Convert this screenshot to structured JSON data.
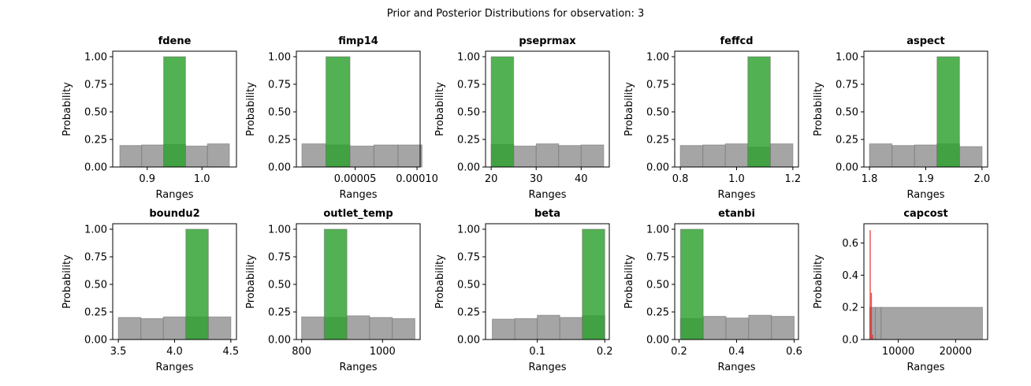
{
  "figure": {
    "suptitle": "Prior and Posterior Distributions for observation: 3"
  },
  "colors": {
    "prior": "#999999",
    "posterior": "#2ca02c",
    "posterior_red": "#e8282b",
    "edge": "#777777"
  },
  "chart_data": [
    {
      "type": "bar",
      "title": "fdene",
      "xlabel": "Ranges",
      "ylabel": "Probability",
      "xlim": [
        0.837,
        1.063
      ],
      "ylim": [
        0,
        1.05
      ],
      "xticks": [
        {
          "v": 0.9,
          "label": "0.9"
        },
        {
          "v": 1.0,
          "label": "1.0"
        }
      ],
      "yticks": [
        {
          "v": 0,
          "label": "0.00"
        },
        {
          "v": 0.25,
          "label": "0.25"
        },
        {
          "v": 0.5,
          "label": "0.50"
        },
        {
          "v": 0.75,
          "label": "0.75"
        },
        {
          "v": 1.0,
          "label": "1.00"
        }
      ],
      "series": [
        {
          "name": "prior",
          "bins": [
            [
              0.85,
              0.89,
              0.195
            ],
            [
              0.89,
              0.93,
              0.2
            ],
            [
              0.93,
              0.97,
              0.205
            ],
            [
              0.97,
              1.01,
              0.19
            ],
            [
              1.01,
              1.05,
              0.21
            ]
          ]
        },
        {
          "name": "posterior",
          "bins": [
            [
              0.93,
              0.97,
              1.0
            ]
          ]
        }
      ]
    },
    {
      "type": "bar",
      "title": "fimp14",
      "xlabel": "Ranges",
      "ylabel": "Probability",
      "xlim": [
        2.5e-06,
        0.0001025
      ],
      "ylim": [
        0,
        1.05
      ],
      "xticks": [
        {
          "v": 5e-05,
          "label": "0.00005"
        },
        {
          "v": 0.0001,
          "label": "0.00010"
        }
      ],
      "yticks": [
        {
          "v": 0,
          "label": "0.00"
        },
        {
          "v": 0.25,
          "label": "0.25"
        },
        {
          "v": 0.5,
          "label": "0.50"
        },
        {
          "v": 0.75,
          "label": "0.75"
        },
        {
          "v": 1.0,
          "label": "1.00"
        }
      ],
      "series": [
        {
          "name": "prior",
          "bins": [
            [
              7e-06,
              2.64e-05,
              0.21
            ],
            [
              2.64e-05,
              4.58e-05,
              0.2
            ],
            [
              4.58e-05,
              6.52e-05,
              0.19
            ],
            [
              6.52e-05,
              8.46e-05,
              0.2
            ],
            [
              8.46e-05,
              0.000104,
              0.2
            ]
          ]
        },
        {
          "name": "posterior",
          "bins": [
            [
              2.64e-05,
              4.58e-05,
              1.0
            ]
          ]
        }
      ]
    },
    {
      "type": "bar",
      "title": "pseprmax",
      "xlabel": "Ranges",
      "ylabel": "Probability",
      "xlim": [
        18.75,
        46.25
      ],
      "ylim": [
        0,
        1.05
      ],
      "xticks": [
        {
          "v": 20,
          "label": "20"
        },
        {
          "v": 30,
          "label": "30"
        },
        {
          "v": 40,
          "label": "40"
        }
      ],
      "yticks": [
        {
          "v": 0,
          "label": "0.00"
        },
        {
          "v": 0.25,
          "label": "0.25"
        },
        {
          "v": 0.5,
          "label": "0.50"
        },
        {
          "v": 0.75,
          "label": "0.75"
        },
        {
          "v": 1.0,
          "label": "1.00"
        }
      ],
      "series": [
        {
          "name": "prior",
          "bins": [
            [
              20,
              25,
              0.205
            ],
            [
              25,
              30,
              0.19
            ],
            [
              30,
              35,
              0.21
            ],
            [
              35,
              40,
              0.195
            ],
            [
              40,
              45,
              0.2
            ]
          ]
        },
        {
          "name": "posterior",
          "bins": [
            [
              20,
              25,
              1.0
            ]
          ]
        }
      ]
    },
    {
      "type": "bar",
      "title": "feffcd",
      "xlabel": "Ranges",
      "ylabel": "Probability",
      "xlim": [
        0.78,
        1.22
      ],
      "ylim": [
        0,
        1.05
      ],
      "xticks": [
        {
          "v": 0.8,
          "label": "0.8"
        },
        {
          "v": 1.0,
          "label": "1.0"
        },
        {
          "v": 1.2,
          "label": "1.2"
        }
      ],
      "yticks": [
        {
          "v": 0,
          "label": "0.00"
        },
        {
          "v": 0.25,
          "label": "0.25"
        },
        {
          "v": 0.5,
          "label": "0.50"
        },
        {
          "v": 0.75,
          "label": "0.75"
        },
        {
          "v": 1.0,
          "label": "1.00"
        }
      ],
      "series": [
        {
          "name": "prior",
          "bins": [
            [
              0.8,
              0.88,
              0.195
            ],
            [
              0.88,
              0.96,
              0.2
            ],
            [
              0.96,
              1.04,
              0.21
            ],
            [
              1.04,
              1.12,
              0.18
            ],
            [
              1.12,
              1.2,
              0.21
            ]
          ]
        },
        {
          "name": "posterior",
          "bins": [
            [
              1.04,
              1.12,
              1.0
            ]
          ]
        }
      ]
    },
    {
      "type": "bar",
      "title": "aspect",
      "xlabel": "Ranges",
      "ylabel": "Probability",
      "xlim": [
        1.79,
        2.01
      ],
      "ylim": [
        0,
        1.05
      ],
      "xticks": [
        {
          "v": 1.8,
          "label": "1.8"
        },
        {
          "v": 1.9,
          "label": "1.9"
        },
        {
          "v": 2.0,
          "label": "2.0"
        }
      ],
      "yticks": [
        {
          "v": 0,
          "label": "0.00"
        },
        {
          "v": 0.25,
          "label": "0.25"
        },
        {
          "v": 0.5,
          "label": "0.50"
        },
        {
          "v": 0.75,
          "label": "0.75"
        },
        {
          "v": 1.0,
          "label": "1.00"
        }
      ],
      "series": [
        {
          "name": "prior",
          "bins": [
            [
              1.8,
              1.84,
              0.21
            ],
            [
              1.84,
              1.88,
              0.195
            ],
            [
              1.88,
              1.92,
              0.2
            ],
            [
              1.92,
              1.96,
              0.21
            ],
            [
              1.96,
              2.0,
              0.185
            ]
          ]
        },
        {
          "name": "posterior",
          "bins": [
            [
              1.92,
              1.96,
              1.0
            ]
          ]
        }
      ]
    },
    {
      "type": "bar",
      "title": "boundu2",
      "xlabel": "Ranges",
      "ylabel": "Probability",
      "xlim": [
        3.45,
        4.55
      ],
      "ylim": [
        0,
        1.05
      ],
      "xticks": [
        {
          "v": 3.5,
          "label": "3.5"
        },
        {
          "v": 4.0,
          "label": "4.0"
        },
        {
          "v": 4.5,
          "label": "4.5"
        }
      ],
      "yticks": [
        {
          "v": 0,
          "label": "0.00"
        },
        {
          "v": 0.25,
          "label": "0.25"
        },
        {
          "v": 0.5,
          "label": "0.50"
        },
        {
          "v": 0.75,
          "label": "0.75"
        },
        {
          "v": 1.0,
          "label": "1.00"
        }
      ],
      "series": [
        {
          "name": "prior",
          "bins": [
            [
              3.5,
              3.7,
              0.2
            ],
            [
              3.7,
              3.9,
              0.19
            ],
            [
              3.9,
              4.1,
              0.205
            ],
            [
              4.1,
              4.3,
              0.205
            ],
            [
              4.3,
              4.5,
              0.205
            ]
          ]
        },
        {
          "name": "posterior",
          "bins": [
            [
              4.1,
              4.3,
              1.0
            ]
          ]
        }
      ]
    },
    {
      "type": "bar",
      "title": "outlet_temp",
      "xlabel": "Ranges",
      "ylabel": "Probability",
      "xlim": [
        787,
        1093
      ],
      "ylim": [
        0,
        1.05
      ],
      "xticks": [
        {
          "v": 800,
          "label": "800"
        },
        {
          "v": 1000,
          "label": "1000"
        }
      ],
      "yticks": [
        {
          "v": 0,
          "label": "0.00"
        },
        {
          "v": 0.25,
          "label": "0.25"
        },
        {
          "v": 0.5,
          "label": "0.50"
        },
        {
          "v": 0.75,
          "label": "0.75"
        },
        {
          "v": 1.0,
          "label": "1.00"
        }
      ],
      "series": [
        {
          "name": "prior",
          "bins": [
            [
              800,
              856,
              0.205
            ],
            [
              856,
              912,
              0.2
            ],
            [
              912,
              968,
              0.215
            ],
            [
              968,
              1024,
              0.2
            ],
            [
              1024,
              1080,
              0.19
            ]
          ]
        },
        {
          "name": "posterior",
          "bins": [
            [
              856,
              912,
              1.0
            ]
          ]
        }
      ]
    },
    {
      "type": "bar",
      "title": "beta",
      "xlabel": "Ranges",
      "ylabel": "Probability",
      "xlim": [
        0.0233,
        0.2067
      ],
      "ylim": [
        0,
        1.05
      ],
      "xticks": [
        {
          "v": 0.1,
          "label": "0.1"
        },
        {
          "v": 0.2,
          "label": "0.2"
        }
      ],
      "yticks": [
        {
          "v": 0,
          "label": "0.00"
        },
        {
          "v": 0.25,
          "label": "0.25"
        },
        {
          "v": 0.5,
          "label": "0.50"
        },
        {
          "v": 0.75,
          "label": "0.75"
        },
        {
          "v": 1.0,
          "label": "1.00"
        }
      ],
      "series": [
        {
          "name": "prior",
          "bins": [
            [
              0.0333,
              0.0667,
              0.185
            ],
            [
              0.0667,
              0.1,
              0.19
            ],
            [
              0.1,
              0.1333,
              0.22
            ],
            [
              0.1333,
              0.1667,
              0.2
            ],
            [
              0.1667,
              0.2,
              0.215
            ]
          ]
        },
        {
          "name": "posterior",
          "bins": [
            [
              0.1667,
              0.2,
              1.0
            ]
          ]
        }
      ]
    },
    {
      "type": "bar",
      "title": "etanbi",
      "xlabel": "Ranges",
      "ylabel": "Probability",
      "xlim": [
        0.185,
        0.615
      ],
      "ylim": [
        0,
        1.05
      ],
      "xticks": [
        {
          "v": 0.2,
          "label": "0.2"
        },
        {
          "v": 0.4,
          "label": "0.4"
        },
        {
          "v": 0.6,
          "label": "0.6"
        }
      ],
      "yticks": [
        {
          "v": 0,
          "label": "0.00"
        },
        {
          "v": 0.25,
          "label": "0.25"
        },
        {
          "v": 0.5,
          "label": "0.50"
        },
        {
          "v": 0.75,
          "label": "0.75"
        },
        {
          "v": 1.0,
          "label": "1.00"
        }
      ],
      "series": [
        {
          "name": "prior",
          "bins": [
            [
              0.205,
              0.284,
              0.19
            ],
            [
              0.284,
              0.363,
              0.21
            ],
            [
              0.363,
              0.442,
              0.195
            ],
            [
              0.442,
              0.521,
              0.22
            ],
            [
              0.521,
              0.6,
              0.21
            ]
          ]
        },
        {
          "name": "posterior",
          "bins": [
            [
              0.205,
              0.284,
              1.0
            ]
          ]
        }
      ]
    },
    {
      "type": "bar",
      "title": "capcost",
      "xlabel": "Ranges",
      "ylabel": "Probability",
      "xlim": [
        4000,
        25600
      ],
      "ylim": [
        0,
        0.72
      ],
      "xticks": [
        {
          "v": 10000,
          "label": "10000"
        },
        {
          "v": 20000,
          "label": "20000"
        }
      ],
      "yticks": [
        {
          "v": 0,
          "label": "0.0"
        },
        {
          "v": 0.2,
          "label": "0.2"
        },
        {
          "v": 0.4,
          "label": "0.4"
        },
        {
          "v": 0.6,
          "label": "0.6"
        }
      ],
      "series": [
        {
          "name": "prior",
          "bins": [
            [
              5000,
              6000,
              0.2
            ],
            [
              6000,
              7000,
              0.2
            ],
            [
              7000,
              24700,
              0.2
            ]
          ]
        },
        {
          "name": "posterior",
          "bins": [
            [
              5000,
              5200,
              0.68
            ],
            [
              5200,
              5400,
              0.29
            ],
            [
              5400,
              5600,
              0.03
            ]
          ]
        }
      ]
    }
  ]
}
